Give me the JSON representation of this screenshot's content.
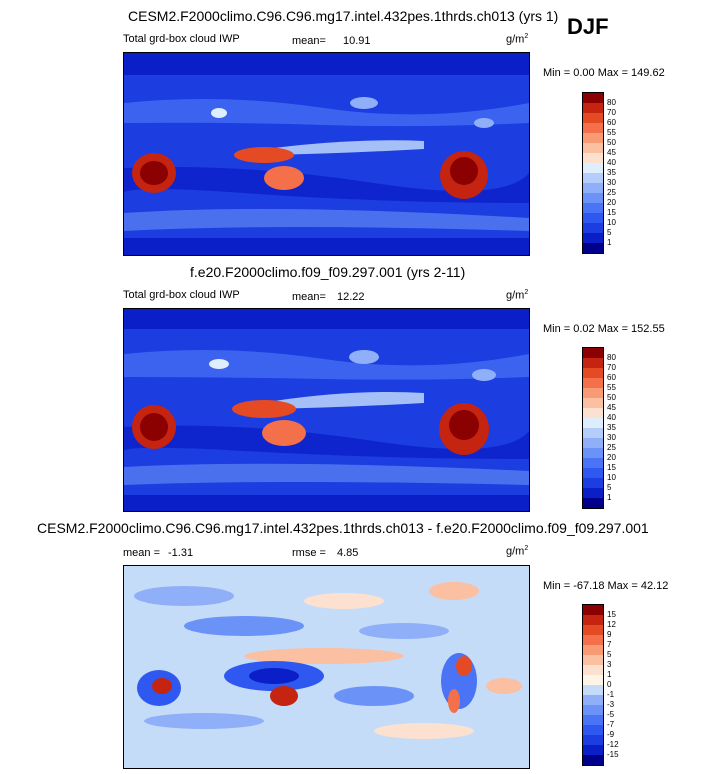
{
  "season": "DJF",
  "chart_data": [
    {
      "type": "heatmap",
      "title": "CESM2.F2000climo.C96.C96.mg17.intel.432pes.1thrds.ch013 (yrs 1)",
      "left_label": "Total grd-box cloud IWP",
      "mean_label": "mean=",
      "mean": "10.91",
      "units_base": "g/m",
      "units_exp": "2",
      "minmax": "Min =   0.00 Max = 149.62",
      "min": 0.0,
      "max": 149.62,
      "levels": [
        "1",
        "5",
        "10",
        "15",
        "20",
        "25",
        "30",
        "35",
        "40",
        "45",
        "50",
        "55",
        "60",
        "70",
        "80"
      ],
      "colors": [
        "#00008b",
        "#0b1fc8",
        "#1c3de0",
        "#2f58f0",
        "#4a74f5",
        "#6b92f7",
        "#8fb0f8",
        "#b5cdfa",
        "#dfeefc",
        "#fde1d0",
        "#fbbfa1",
        "#f89a73",
        "#f3704a",
        "#e44a23",
        "#c42410",
        "#8b0000"
      ]
    },
    {
      "type": "heatmap",
      "title": "f.e20.F2000climo.f09_f09.297.001 (yrs 2-11)",
      "left_label": "Total grd-box cloud IWP",
      "mean_label": "mean=",
      "mean": "12.22",
      "units_base": "g/m",
      "units_exp": "2",
      "minmax": "Min =  0.02 Max = 152.55",
      "min": 0.02,
      "max": 152.55,
      "levels": [
        "1",
        "5",
        "10",
        "15",
        "20",
        "25",
        "30",
        "35",
        "40",
        "45",
        "50",
        "55",
        "60",
        "70",
        "80"
      ],
      "colors": [
        "#00008b",
        "#0b1fc8",
        "#1c3de0",
        "#2f58f0",
        "#4a74f5",
        "#6b92f7",
        "#8fb0f8",
        "#b5cdfa",
        "#dfeefc",
        "#fde1d0",
        "#fbbfa1",
        "#f89a73",
        "#f3704a",
        "#e44a23",
        "#c42410",
        "#8b0000"
      ]
    },
    {
      "type": "heatmap",
      "title": "CESM2.F2000climo.C96.C96.mg17.intel.432pes.1thrds.ch013 - f.e20.F2000climo.f09_f09.297.001",
      "mean_label": "mean =",
      "mean": "-1.31",
      "rmse_label": "rmse =",
      "rmse": "4.85",
      "units_base": "g/m",
      "units_exp": "2",
      "minmax": "Min = -67.18 Max =  42.12",
      "min": -67.18,
      "max": 42.12,
      "levels": [
        "-15",
        "-12",
        "-9",
        "-7",
        "-5",
        "-3",
        "-1",
        "0",
        "1",
        "3",
        "5",
        "7",
        "9",
        "12",
        "15"
      ],
      "colors": [
        "#00008b",
        "#0b1fc8",
        "#1c3de0",
        "#2f58f0",
        "#4a74f5",
        "#6b92f7",
        "#8fb0f8",
        "#c5dcf8",
        "#fef5e6",
        "#fde1d0",
        "#fbbfa1",
        "#f89a73",
        "#f3704a",
        "#e44a23",
        "#c42410",
        "#8b0000"
      ]
    }
  ]
}
